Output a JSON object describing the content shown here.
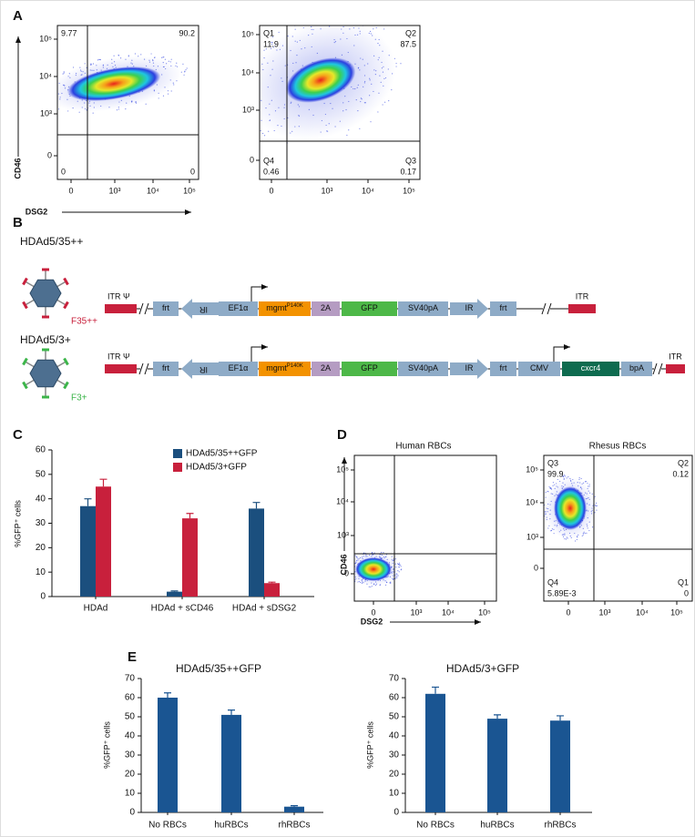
{
  "panel_labels": [
    "A",
    "B",
    "C",
    "D",
    "E"
  ],
  "flow_plots": [
    {
      "y_label": "CD46",
      "x_label": "DSG2",
      "x_ticks": [
        "0",
        "10³",
        "10⁴",
        "10⁵"
      ],
      "y_ticks": [
        "0",
        "10³",
        "10⁴",
        "10⁵"
      ],
      "quadrants": {
        "upper_left": {
          "value": "9.77"
        },
        "upper_right": {
          "value": "90.2"
        },
        "lower_left": {
          "value": "0"
        },
        "lower_right": {
          "value": "0"
        }
      }
    },
    {
      "x_ticks": [
        "0",
        "10³",
        "10⁴",
        "10⁵"
      ],
      "y_ticks": [
        "0",
        "10³",
        "10⁴",
        "10⁵"
      ],
      "quadrants": {
        "upper_left": {
          "name": "Q1",
          "value": "11.9"
        },
        "upper_right": {
          "name": "Q2",
          "value": "87.5"
        },
        "lower_left": {
          "name": "Q4",
          "value": "0.46"
        },
        "lower_right": {
          "name": "Q3",
          "value": "0.17"
        }
      }
    },
    {
      "title": "Human RBCs",
      "y_label": "CD46",
      "x_label": "DSG2",
      "x_ticks": [
        "0",
        "10³",
        "10⁴",
        "10⁵"
      ],
      "y_ticks": [
        "0",
        "10³",
        "10⁴",
        "10⁵"
      ]
    },
    {
      "title": "Rhesus RBCs",
      "x_ticks": [
        "0",
        "10³",
        "10⁴",
        "10⁵"
      ],
      "y_ticks": [
        "0",
        "10³",
        "10⁴",
        "10⁵"
      ],
      "quadrants": {
        "upper_left": {
          "name": "Q3",
          "value": "99.9"
        },
        "upper_right": {
          "name": "Q2",
          "value": "0.12"
        },
        "lower_left": {
          "name": "Q4",
          "value": "5.89E-3"
        },
        "lower_right": {
          "name": "Q1",
          "value": "0"
        }
      }
    }
  ],
  "constructs": [
    {
      "name": "HDAd5/35++",
      "fiber": "F35++",
      "elements": [
        {
          "text": "ITR Ψ"
        },
        {
          "text": "frt"
        },
        {
          "text": "IR"
        },
        {
          "text": "EF1α"
        },
        {
          "text": "mgmt",
          "sup": "P140K"
        },
        {
          "text": "2A"
        },
        {
          "text": "GFP"
        },
        {
          "text": "SV40pA"
        },
        {
          "text": "IR"
        },
        {
          "text": "frt"
        },
        {
          "text": "ITR"
        }
      ]
    },
    {
      "name": "HDAd5/3+",
      "fiber": "F3+",
      "elements": [
        {
          "text": "ITR Ψ"
        },
        {
          "text": "frt"
        },
        {
          "text": "IR"
        },
        {
          "text": "EF1α"
        },
        {
          "text": "mgmt",
          "sup": "P140K"
        },
        {
          "text": "2A"
        },
        {
          "text": "GFP"
        },
        {
          "text": "SV40pA"
        },
        {
          "text": "IR"
        },
        {
          "text": "frt"
        },
        {
          "text": "CMV"
        },
        {
          "text": "cxcr4"
        },
        {
          "text": "bpA"
        },
        {
          "text": "ITR"
        }
      ]
    }
  ],
  "chart_data": [
    {
      "type": "bar",
      "y_label": "%GFP⁺ cells",
      "categories": [
        "HDAd",
        "HDAd + sCD46",
        "HDAd + sDSG2"
      ],
      "series": [
        {
          "name": "HDAd5/35++GFP",
          "color": "#1b4f7e",
          "values": [
            37,
            2,
            36
          ],
          "errors": [
            3,
            0.3,
            2.5
          ]
        },
        {
          "name": "HDAd5/3+GFP",
          "color": "#c8203c",
          "values": [
            45,
            32,
            5.5
          ],
          "errors": [
            3,
            2,
            0.4
          ]
        }
      ],
      "ylim": [
        0,
        60
      ],
      "yticks": [
        0,
        10,
        20,
        30,
        40,
        50,
        60
      ]
    },
    {
      "type": "bar",
      "title": "HDAd5/35++GFP",
      "y_label": "%GFP⁺ cells",
      "categories": [
        "No RBCs",
        "huRBCs",
        "rhRBCs"
      ],
      "values": [
        60,
        51,
        3
      ],
      "errors": [
        2.5,
        2.5,
        0.5
      ],
      "color": "#1a5592",
      "ylim": [
        0,
        70
      ],
      "yticks": [
        0,
        10,
        20,
        30,
        40,
        50,
        60,
        70
      ]
    },
    {
      "type": "bar",
      "title": "HDAd5/3+GFP",
      "y_label": "%GFP⁺ cells",
      "categories": [
        "No RBCs",
        "huRBCs",
        "rhRBCs"
      ],
      "values": [
        62,
        49,
        48
      ],
      "errors": [
        3.5,
        2,
        2.5
      ],
      "color": "#1a5592",
      "ylim": [
        0,
        70
      ],
      "yticks": [
        0,
        10,
        20,
        30,
        40,
        50,
        60,
        70
      ]
    }
  ]
}
